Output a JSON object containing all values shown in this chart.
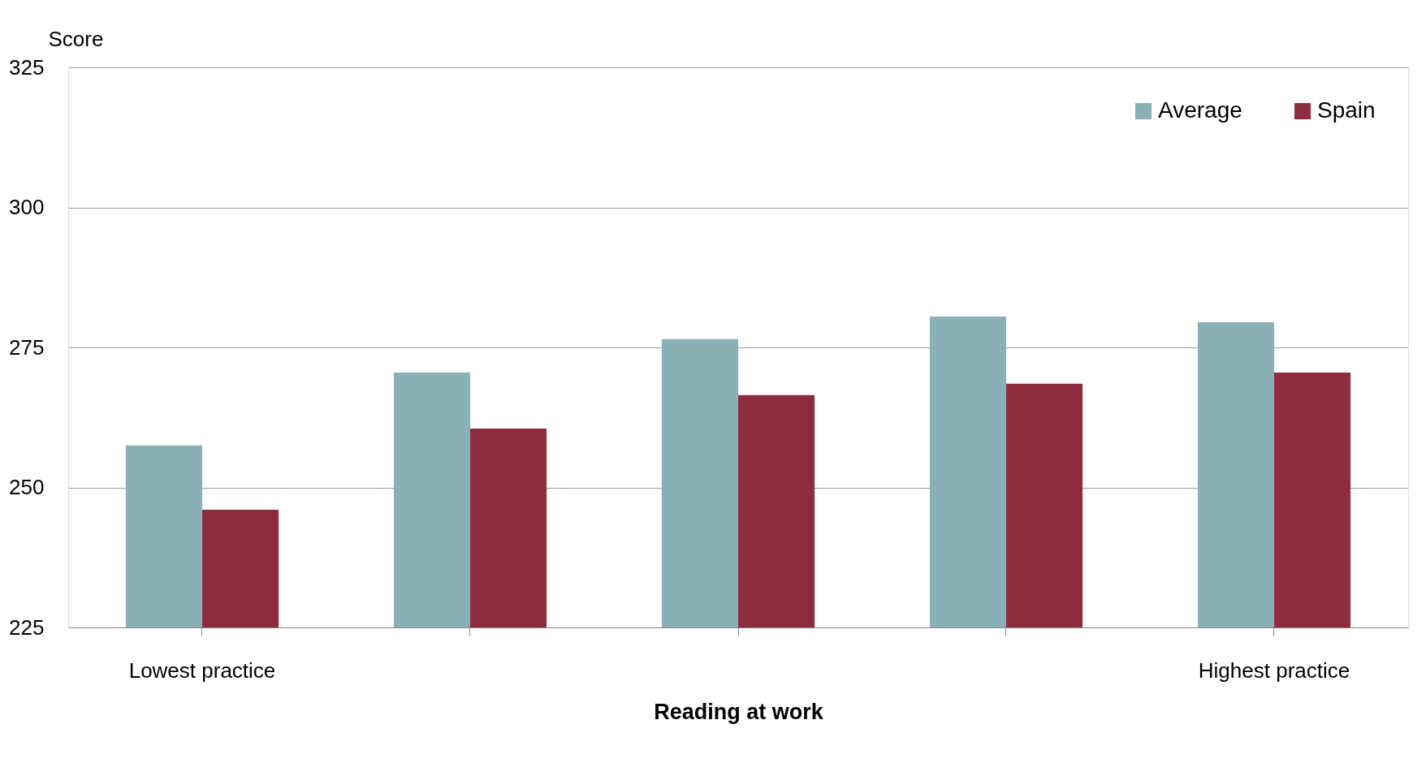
{
  "chart_data": {
    "type": "bar",
    "xlabel": "Reading at work",
    "ylabel": "Score",
    "categories": [
      "Lowest practice",
      null,
      null,
      null,
      "Highest practice"
    ],
    "series": [
      {
        "name": "Average",
        "color": "#8ab0b7",
        "values": [
          257.5,
          270.5,
          276.5,
          280.5,
          279.5
        ]
      },
      {
        "name": "Spain",
        "color": "#8e2b3d",
        "values": [
          246,
          260.5,
          266.5,
          268.5,
          270.5
        ]
      }
    ],
    "ylim": [
      225,
      325
    ],
    "yticks": [
      225,
      250,
      275,
      300,
      325
    ],
    "grid": "y",
    "legend": "top right"
  }
}
